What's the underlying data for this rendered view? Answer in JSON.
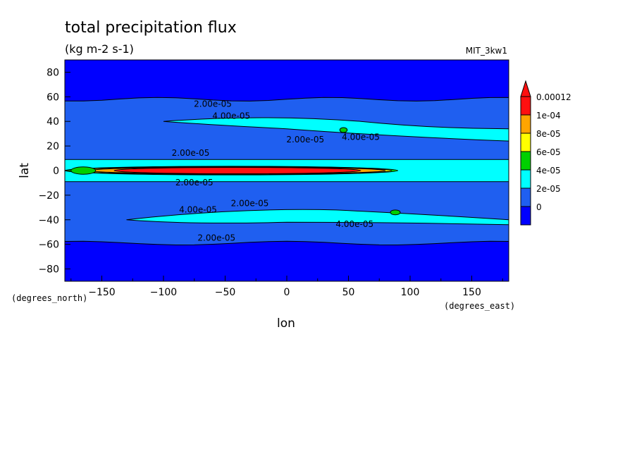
{
  "chart_data": {
    "type": "heatmap",
    "title": "total precipitation flux",
    "subtitle": "(kg m-2 s-1)",
    "dataset": "MIT_3kw1",
    "xlabel": "lon",
    "ylabel": "lat",
    "x_units": "(degrees_east)",
    "y_units": "(degrees_north)",
    "xlim": [
      -180,
      180
    ],
    "ylim": [
      -90,
      90
    ],
    "x_ticks": [
      -150,
      -100,
      -50,
      0,
      50,
      100,
      150
    ],
    "x_tick_labels": [
      "-150",
      "-100",
      "-50",
      "0",
      "50",
      "100",
      "150"
    ],
    "y_ticks": [
      80,
      60,
      40,
      20,
      0,
      -20,
      -40,
      -60,
      -80
    ],
    "y_tick_labels": [
      "80",
      "60",
      "40",
      "20",
      "0",
      "-20",
      "-40",
      "-60",
      "-80"
    ],
    "colorbar": {
      "levels": [
        0,
        2e-05,
        4e-05,
        6e-05,
        8e-05,
        0.0001,
        0.00012
      ],
      "labels": [
        "0",
        "2e-05",
        "4e-05",
        "6e-05",
        "8e-05",
        "1e-04",
        "0.00012"
      ],
      "colors": [
        "#1f5ff0",
        "#00ffff",
        "#00d000",
        "#ffff00",
        "#ffa500",
        "#ff1010"
      ],
      "under_color": "#0000ff",
      "over_color": "#ff1010"
    },
    "background_color": "#0000ff",
    "contour_labels": [
      {
        "text": "2.00e-05",
        "lon": -60,
        "lat": 52
      },
      {
        "text": "4.00e-05",
        "lon": -45,
        "lat": 42
      },
      {
        "text": "2.00e-05",
        "lon": 15,
        "lat": 23
      },
      {
        "text": "4.00e-05",
        "lon": 60,
        "lat": 25
      },
      {
        "text": "2.00e-05",
        "lon": -78,
        "lat": 12
      },
      {
        "text": "2.00e-05",
        "lon": -75,
        "lat": -12
      },
      {
        "text": "2.00e-05",
        "lon": -30,
        "lat": -29
      },
      {
        "text": "4.00e-05",
        "lon": -72,
        "lat": -34
      },
      {
        "text": "4.00e-05",
        "lon": 55,
        "lat": -46
      },
      {
        "text": "2.00e-05",
        "lon": -57,
        "lat": -57
      }
    ],
    "grid": false
  }
}
